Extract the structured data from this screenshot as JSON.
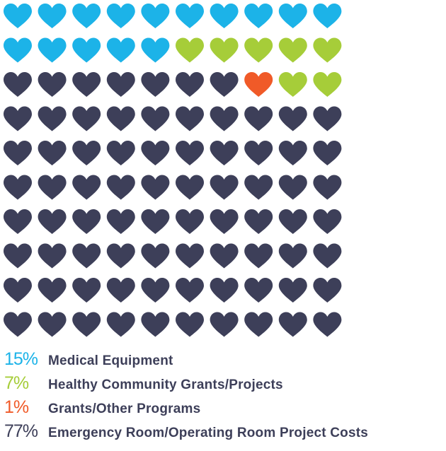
{
  "chart_data": {
    "type": "waffle",
    "grid": {
      "rows": 10,
      "cols": 10
    },
    "order": "row-major, top-left first",
    "series": [
      {
        "name": "Medical Equipment",
        "value": 15,
        "label": "15%",
        "color": "#1cb3e8"
      },
      {
        "name": "Healthy Community Grants/Projects",
        "value": 7,
        "label": "7%",
        "color": "#a6cd39"
      },
      {
        "name": "Grants/Other Programs",
        "value": 1,
        "label": "1%",
        "color": "#f05a28"
      },
      {
        "name": "Emergency Room/Operating Room Project Costs",
        "value": 77,
        "label": "77%",
        "color": "#3d3f59"
      }
    ],
    "cell_sequence": [
      "Medical Equipment",
      "Medical Equipment",
      "Medical Equipment",
      "Medical Equipment",
      "Medical Equipment",
      "Medical Equipment",
      "Medical Equipment",
      "Medical Equipment",
      "Medical Equipment",
      "Medical Equipment",
      "Medical Equipment",
      "Medical Equipment",
      "Medical Equipment",
      "Medical Equipment",
      "Medical Equipment",
      "Healthy Community Grants/Projects",
      "Healthy Community Grants/Projects",
      "Healthy Community Grants/Projects",
      "Healthy Community Grants/Projects",
      "Healthy Community Grants/Projects",
      "Emergency Room/Operating Room Project Costs",
      "Emergency Room/Operating Room Project Costs",
      "Emergency Room/Operating Room Project Costs",
      "Emergency Room/Operating Room Project Costs",
      "Emergency Room/Operating Room Project Costs",
      "Emergency Room/Operating Room Project Costs",
      "Emergency Room/Operating Room Project Costs",
      "Grants/Other Programs",
      "Healthy Community Grants/Projects",
      "Healthy Community Grants/Projects"
    ],
    "fill_remaining": "Emergency Room/Operating Room Project Costs",
    "icon": "heart-icon"
  }
}
